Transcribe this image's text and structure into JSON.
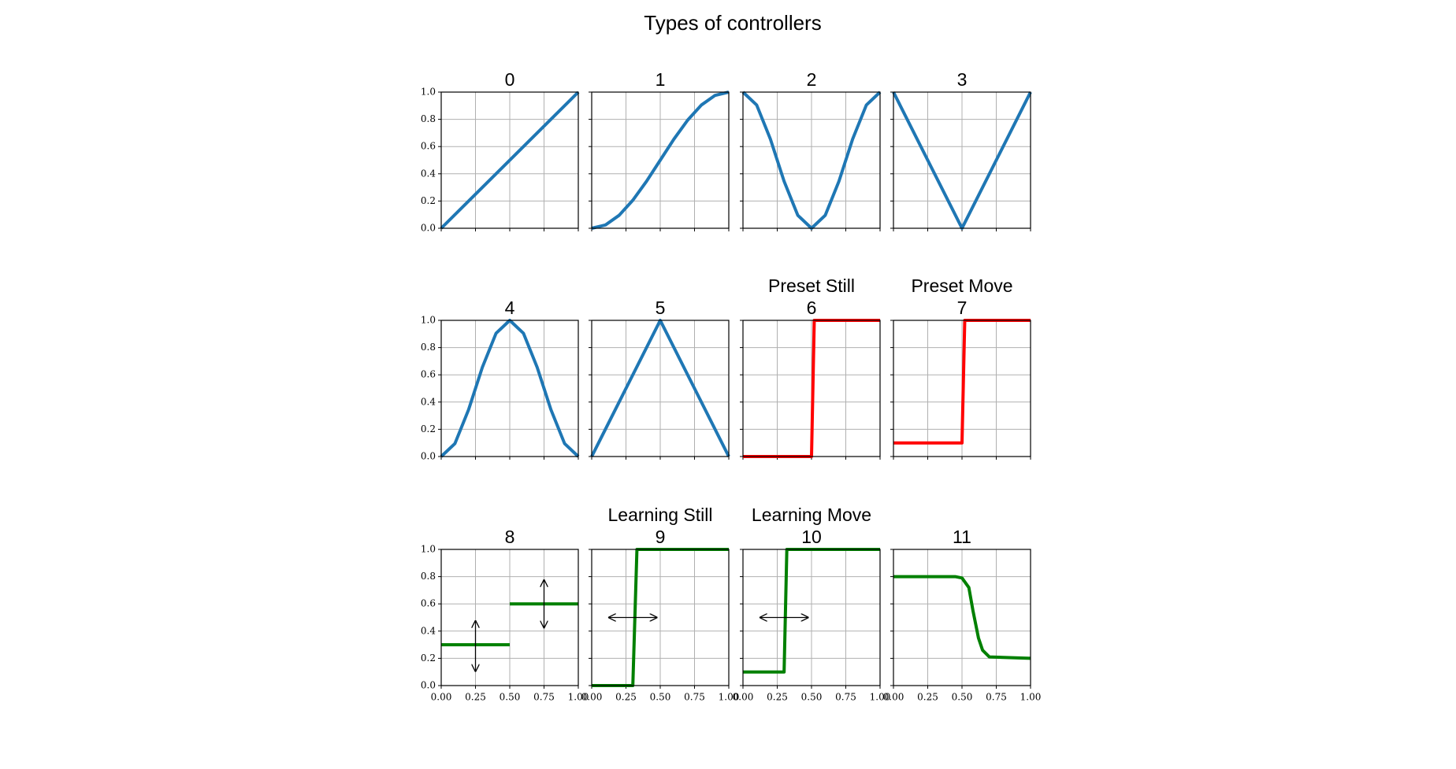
{
  "title": "Types of controllers",
  "chart_data": [
    {
      "type": "line",
      "title": [
        "0"
      ],
      "color": "#1f77b4",
      "x": [
        0,
        1
      ],
      "values": [
        0,
        1
      ],
      "xlim": [
        0,
        1
      ],
      "ylim": [
        0,
        1
      ],
      "xticks": [
        0,
        0.25,
        0.5,
        0.75,
        1
      ],
      "yticks": [
        {
          "value": 0,
          "label": "0.0"
        },
        {
          "value": 0.2,
          "label": "0.2"
        },
        {
          "value": 0.4,
          "label": "0.4"
        },
        {
          "value": 0.6,
          "label": "0.6"
        },
        {
          "value": 0.8,
          "label": "0.8"
        },
        {
          "value": 1,
          "label": "1.0"
        }
      ],
      "grid": true
    },
    {
      "type": "line",
      "title": [
        "1"
      ],
      "color": "#1f77b4",
      "x": [
        0,
        0.1,
        0.2,
        0.3,
        0.4,
        0.5,
        0.6,
        0.7,
        0.8,
        0.9,
        1
      ],
      "values": [
        0,
        0.024,
        0.095,
        0.206,
        0.345,
        0.5,
        0.655,
        0.794,
        0.905,
        0.976,
        1
      ],
      "xlim": [
        0,
        1
      ],
      "ylim": [
        0,
        1
      ],
      "xticks": [
        0,
        0.25,
        0.5,
        0.75,
        1
      ],
      "yticks": [
        0,
        0.2,
        0.4,
        0.6,
        0.8,
        1
      ],
      "grid": true
    },
    {
      "type": "line",
      "title": [
        "2"
      ],
      "color": "#1f77b4",
      "x": [
        0,
        0.1,
        0.2,
        0.3,
        0.4,
        0.5,
        0.6,
        0.7,
        0.8,
        0.9,
        1
      ],
      "values": [
        1,
        0.905,
        0.655,
        0.345,
        0.095,
        0,
        0.095,
        0.345,
        0.655,
        0.905,
        1
      ],
      "xlim": [
        0,
        1
      ],
      "ylim": [
        0,
        1
      ],
      "xticks": [
        0,
        0.25,
        0.5,
        0.75,
        1
      ],
      "yticks": [
        0,
        0.2,
        0.4,
        0.6,
        0.8,
        1
      ],
      "grid": true
    },
    {
      "type": "line",
      "title": [
        "3"
      ],
      "color": "#1f77b4",
      "x": [
        0,
        0.5,
        1
      ],
      "values": [
        1,
        0,
        1
      ],
      "xlim": [
        0,
        1
      ],
      "ylim": [
        0,
        1
      ],
      "xticks": [
        0,
        0.25,
        0.5,
        0.75,
        1
      ],
      "yticks": [
        0,
        0.2,
        0.4,
        0.6,
        0.8,
        1
      ],
      "grid": true
    },
    {
      "type": "line",
      "title": [
        "4"
      ],
      "color": "#1f77b4",
      "x": [
        0,
        0.1,
        0.2,
        0.3,
        0.4,
        0.5,
        0.6,
        0.7,
        0.8,
        0.9,
        1
      ],
      "values": [
        0,
        0.095,
        0.345,
        0.655,
        0.905,
        1,
        0.905,
        0.655,
        0.345,
        0.095,
        0
      ],
      "xlim": [
        0,
        1
      ],
      "ylim": [
        0,
        1
      ],
      "xticks": [
        0,
        0.25,
        0.5,
        0.75,
        1
      ],
      "yticks": [
        {
          "value": 0,
          "label": "0.0"
        },
        {
          "value": 0.2,
          "label": "0.2"
        },
        {
          "value": 0.4,
          "label": "0.4"
        },
        {
          "value": 0.6,
          "label": "0.6"
        },
        {
          "value": 0.8,
          "label": "0.8"
        },
        {
          "value": 1,
          "label": "1.0"
        }
      ],
      "grid": true
    },
    {
      "type": "line",
      "title": [
        "5"
      ],
      "color": "#1f77b4",
      "x": [
        0,
        0.5,
        1
      ],
      "values": [
        0,
        1,
        0
      ],
      "xlim": [
        0,
        1
      ],
      "ylim": [
        0,
        1
      ],
      "xticks": [
        0,
        0.25,
        0.5,
        0.75,
        1
      ],
      "yticks": [
        0,
        0.2,
        0.4,
        0.6,
        0.8,
        1
      ],
      "grid": true
    },
    {
      "type": "line",
      "title": [
        "Preset Still",
        "6"
      ],
      "color": "#ff0000",
      "x": [
        0,
        0.5,
        0.52,
        1
      ],
      "values": [
        0,
        0,
        1,
        1
      ],
      "xlim": [
        0,
        1
      ],
      "ylim": [
        0,
        1
      ],
      "xticks": [
        0,
        0.25,
        0.5,
        0.75,
        1
      ],
      "yticks": [
        0,
        0.2,
        0.4,
        0.6,
        0.8,
        1
      ],
      "grid": true
    },
    {
      "type": "line",
      "title": [
        "Preset Move",
        "7"
      ],
      "color": "#ff0000",
      "x": [
        0,
        0.5,
        0.52,
        1
      ],
      "values": [
        0.1,
        0.1,
        1,
        1
      ],
      "xlim": [
        0,
        1
      ],
      "ylim": [
        0,
        1
      ],
      "xticks": [
        0,
        0.25,
        0.5,
        0.75,
        1
      ],
      "yticks": [
        0,
        0.2,
        0.4,
        0.6,
        0.8,
        1
      ],
      "grid": true
    },
    {
      "type": "line",
      "title": [
        "8"
      ],
      "color": "#008000",
      "x": [
        0,
        0.5,
        null,
        0.5,
        1
      ],
      "values": [
        0.3,
        0.3,
        null,
        0.6,
        0.6
      ],
      "xlim": [
        0,
        1
      ],
      "ylim": [
        0,
        1
      ],
      "xticks": [
        {
          "value": 0,
          "label": "0.00"
        },
        {
          "value": 0.25,
          "label": "0.25"
        },
        {
          "value": 0.5,
          "label": "0.50"
        },
        {
          "value": 0.75,
          "label": "0.75"
        },
        {
          "value": 1,
          "label": "1.00"
        }
      ],
      "yticks": [
        {
          "value": 0,
          "label": "0.0"
        },
        {
          "value": 0.2,
          "label": "0.2"
        },
        {
          "value": 0.4,
          "label": "0.4"
        },
        {
          "value": 0.6,
          "label": "0.6"
        },
        {
          "value": 0.8,
          "label": "0.8"
        },
        {
          "value": 1,
          "label": "1.0"
        }
      ],
      "grid": true
    },
    {
      "type": "line",
      "title": [
        "Learning Still",
        "9"
      ],
      "color": "#008000",
      "x": [
        0,
        0.3,
        0.33,
        1
      ],
      "values": [
        0,
        0,
        1,
        1
      ],
      "xlim": [
        0,
        1
      ],
      "ylim": [
        0,
        1
      ],
      "xticks": [
        {
          "value": 0,
          "label": "0.00"
        },
        {
          "value": 0.25,
          "label": "0.25"
        },
        {
          "value": 0.5,
          "label": "0.50"
        },
        {
          "value": 0.75,
          "label": "0.75"
        },
        {
          "value": 1,
          "label": "1.00"
        }
      ],
      "yticks": [
        0,
        0.2,
        0.4,
        0.6,
        0.8,
        1
      ],
      "grid": true
    },
    {
      "type": "line",
      "title": [
        "Learning Move",
        "10"
      ],
      "color": "#008000",
      "x": [
        0,
        0.3,
        0.32,
        1
      ],
      "values": [
        0.1,
        0.1,
        1,
        1
      ],
      "xlim": [
        0,
        1
      ],
      "ylim": [
        0,
        1
      ],
      "xticks": [
        {
          "value": 0,
          "label": "0.00"
        },
        {
          "value": 0.25,
          "label": "0.25"
        },
        {
          "value": 0.5,
          "label": "0.50"
        },
        {
          "value": 0.75,
          "label": "0.75"
        },
        {
          "value": 1,
          "label": "1.00"
        }
      ],
      "yticks": [
        0,
        0.2,
        0.4,
        0.6,
        0.8,
        1
      ],
      "grid": true
    },
    {
      "type": "line",
      "title": [
        "11"
      ],
      "color": "#008000",
      "x": [
        0,
        0.45,
        0.5,
        0.55,
        0.58,
        0.6,
        0.62,
        0.65,
        0.7,
        1
      ],
      "values": [
        0.8,
        0.8,
        0.79,
        0.72,
        0.55,
        0.45,
        0.35,
        0.26,
        0.21,
        0.2
      ],
      "xlim": [
        0,
        1
      ],
      "ylim": [
        0,
        1
      ],
      "xticks": [
        {
          "value": 0,
          "label": "0.00"
        },
        {
          "value": 0.25,
          "label": "0.25"
        },
        {
          "value": 0.5,
          "label": "0.50"
        },
        {
          "value": 0.75,
          "label": "0.75"
        },
        {
          "value": 1,
          "label": "1.00"
        }
      ],
      "yticks": [
        0,
        0.2,
        0.4,
        0.6,
        0.8,
        1
      ],
      "grid": true
    }
  ]
}
